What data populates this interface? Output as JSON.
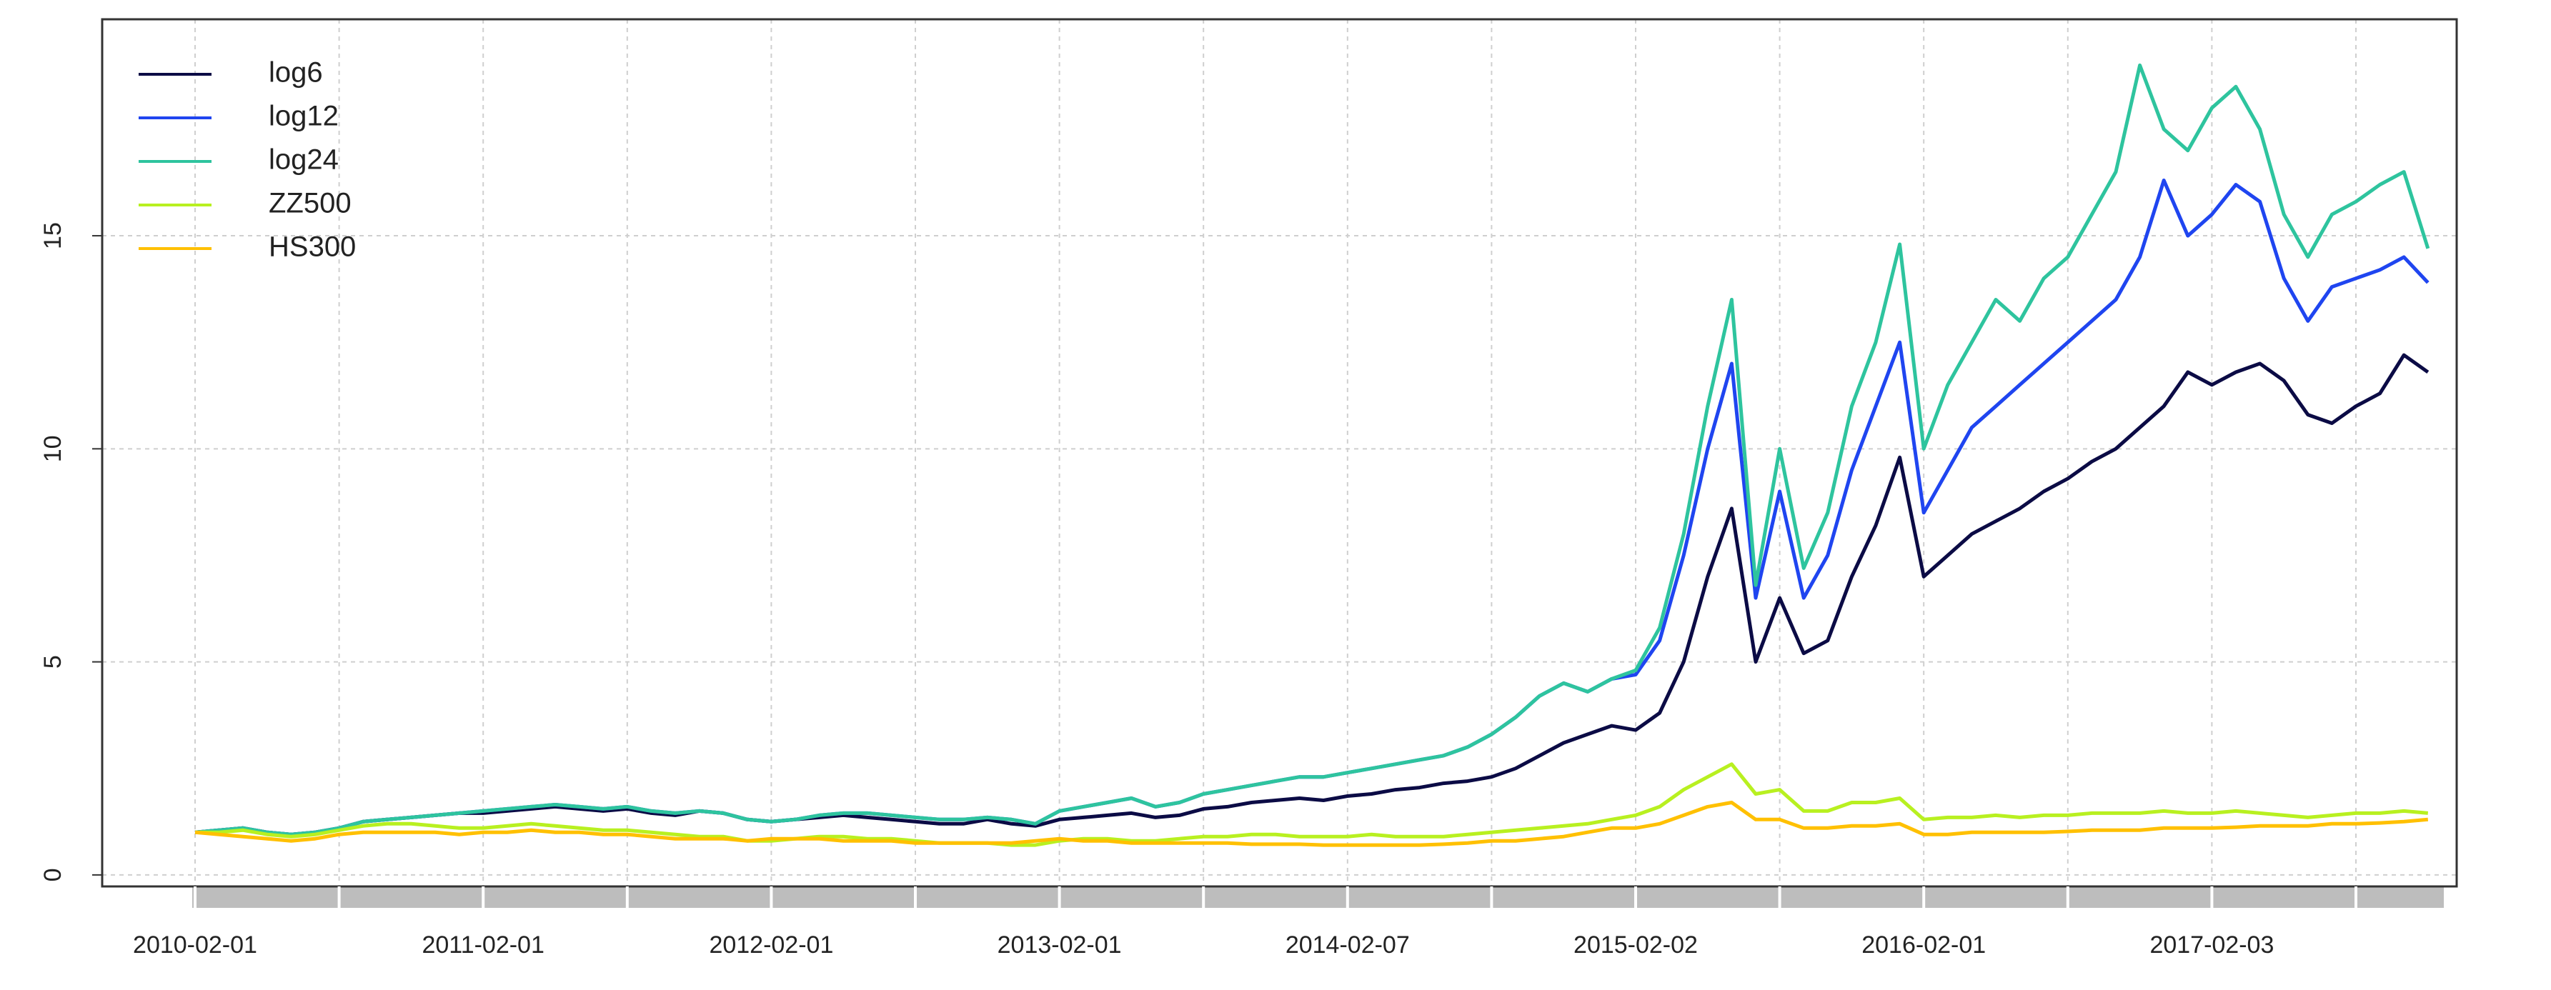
{
  "chart_data": {
    "type": "line",
    "categories": [
      "2010-02-01",
      null,
      null,
      null,
      null,
      null,
      null,
      null,
      null,
      null,
      null,
      null,
      "2011-02-01",
      null,
      null,
      null,
      null,
      null,
      null,
      null,
      null,
      null,
      null,
      null,
      "2012-02-01",
      null,
      null,
      null,
      null,
      null,
      null,
      null,
      null,
      null,
      null,
      null,
      "2013-02-01",
      null,
      null,
      null,
      null,
      null,
      null,
      null,
      null,
      null,
      null,
      null,
      "2014-02-07",
      null,
      null,
      null,
      null,
      null,
      null,
      null,
      null,
      null,
      null,
      null,
      "2015-02-02",
      null,
      null,
      null,
      null,
      null,
      null,
      null,
      null,
      null,
      null,
      null,
      "2016-02-01",
      null,
      null,
      null,
      null,
      null,
      null,
      null,
      null,
      null,
      null,
      null,
      "2017-02-03",
      null,
      null,
      null,
      null,
      null,
      null,
      null,
      null,
      null
    ],
    "series": [
      {
        "name": "log6",
        "color": "#0b0b45",
        "values": [
          1.0,
          1.05,
          1.1,
          1.0,
          0.95,
          1.0,
          1.1,
          1.25,
          1.3,
          1.35,
          1.4,
          1.45,
          1.45,
          1.5,
          1.55,
          1.6,
          1.55,
          1.5,
          1.55,
          1.45,
          1.4,
          1.5,
          1.45,
          1.3,
          1.25,
          1.3,
          1.35,
          1.4,
          1.35,
          1.3,
          1.25,
          1.2,
          1.2,
          1.3,
          1.2,
          1.15,
          1.3,
          1.35,
          1.4,
          1.45,
          1.35,
          1.4,
          1.55,
          1.6,
          1.7,
          1.75,
          1.8,
          1.75,
          1.85,
          1.9,
          2.0,
          2.05,
          2.15,
          2.2,
          2.3,
          2.5,
          2.8,
          3.1,
          3.3,
          3.5,
          3.4,
          3.8,
          5.0,
          7.0,
          8.6,
          5.0,
          6.5,
          5.2,
          5.5,
          7.0,
          8.2,
          9.8,
          7.0,
          7.5,
          8.0,
          8.3,
          8.6,
          9.0,
          9.3,
          9.7,
          10.0,
          10.5,
          11.0,
          11.8,
          11.5,
          11.8,
          12.0,
          11.6,
          10.8,
          10.6,
          11.0,
          11.3,
          12.2,
          11.8
        ]
      },
      {
        "name": "log12",
        "color": "#1f45f0",
        "values": [
          1.0,
          1.05,
          1.1,
          1.0,
          0.95,
          1.0,
          1.1,
          1.25,
          1.3,
          1.35,
          1.4,
          1.45,
          1.5,
          1.55,
          1.6,
          1.65,
          1.6,
          1.55,
          1.6,
          1.5,
          1.45,
          1.5,
          1.45,
          1.3,
          1.25,
          1.3,
          1.4,
          1.45,
          1.45,
          1.4,
          1.35,
          1.3,
          1.3,
          1.35,
          1.3,
          1.2,
          1.5,
          1.6,
          1.7,
          1.8,
          1.6,
          1.7,
          1.9,
          2.0,
          2.1,
          2.2,
          2.3,
          2.3,
          2.4,
          2.5,
          2.6,
          2.7,
          2.8,
          3.0,
          3.3,
          3.7,
          4.2,
          4.5,
          4.3,
          4.6,
          4.7,
          5.5,
          7.5,
          10.0,
          12.0,
          6.5,
          9.0,
          6.5,
          7.5,
          9.5,
          11.0,
          12.5,
          8.5,
          9.5,
          10.5,
          11.0,
          11.5,
          12.0,
          12.5,
          13.0,
          13.5,
          14.5,
          16.3,
          15.0,
          15.5,
          16.2,
          15.8,
          14.0,
          13.0,
          13.8,
          14.0,
          14.2,
          14.5,
          13.9
        ]
      },
      {
        "name": "log24",
        "color": "#2ec49e",
        "values": [
          1.0,
          1.05,
          1.1,
          1.0,
          0.95,
          1.0,
          1.1,
          1.25,
          1.3,
          1.35,
          1.4,
          1.45,
          1.5,
          1.55,
          1.6,
          1.65,
          1.6,
          1.55,
          1.6,
          1.5,
          1.45,
          1.5,
          1.45,
          1.3,
          1.25,
          1.3,
          1.4,
          1.45,
          1.45,
          1.4,
          1.35,
          1.3,
          1.3,
          1.35,
          1.3,
          1.2,
          1.5,
          1.6,
          1.7,
          1.8,
          1.6,
          1.7,
          1.9,
          2.0,
          2.1,
          2.2,
          2.3,
          2.3,
          2.4,
          2.5,
          2.6,
          2.7,
          2.8,
          3.0,
          3.3,
          3.7,
          4.2,
          4.5,
          4.3,
          4.6,
          4.8,
          5.8,
          8.0,
          11.0,
          13.5,
          6.8,
          10.0,
          7.2,
          8.5,
          11.0,
          12.5,
          14.8,
          10.0,
          11.5,
          12.5,
          13.5,
          13.0,
          14.0,
          14.5,
          15.5,
          16.5,
          19.0,
          17.5,
          17.0,
          18.0,
          18.5,
          17.5,
          15.5,
          14.5,
          15.5,
          15.8,
          16.2,
          16.5,
          14.7
        ]
      },
      {
        "name": "ZZ500",
        "color": "#b8f020",
        "values": [
          1.0,
          1.0,
          1.05,
          0.95,
          0.9,
          0.95,
          1.05,
          1.15,
          1.2,
          1.2,
          1.15,
          1.1,
          1.1,
          1.15,
          1.2,
          1.15,
          1.1,
          1.05,
          1.05,
          1.0,
          0.95,
          0.9,
          0.9,
          0.8,
          0.8,
          0.85,
          0.9,
          0.9,
          0.85,
          0.85,
          0.8,
          0.75,
          0.75,
          0.75,
          0.7,
          0.7,
          0.8,
          0.85,
          0.85,
          0.8,
          0.8,
          0.85,
          0.9,
          0.9,
          0.95,
          0.95,
          0.9,
          0.9,
          0.9,
          0.95,
          0.9,
          0.9,
          0.9,
          0.95,
          1.0,
          1.05,
          1.1,
          1.15,
          1.2,
          1.3,
          1.4,
          1.6,
          2.0,
          2.3,
          2.6,
          1.9,
          2.0,
          1.5,
          1.5,
          1.7,
          1.7,
          1.8,
          1.3,
          1.35,
          1.35,
          1.4,
          1.35,
          1.4,
          1.4,
          1.45,
          1.45,
          1.45,
          1.5,
          1.45,
          1.45,
          1.5,
          1.45,
          1.4,
          1.35,
          1.4,
          1.45,
          1.45,
          1.5,
          1.45
        ]
      },
      {
        "name": "HS300",
        "color": "#ffc000",
        "values": [
          1.0,
          0.95,
          0.9,
          0.85,
          0.8,
          0.85,
          0.95,
          1.0,
          1.0,
          1.0,
          1.0,
          0.95,
          1.0,
          1.0,
          1.05,
          1.0,
          1.0,
          0.95,
          0.95,
          0.9,
          0.85,
          0.85,
          0.85,
          0.8,
          0.85,
          0.85,
          0.85,
          0.8,
          0.8,
          0.8,
          0.75,
          0.75,
          0.75,
          0.75,
          0.75,
          0.8,
          0.85,
          0.8,
          0.8,
          0.75,
          0.75,
          0.75,
          0.75,
          0.75,
          0.72,
          0.72,
          0.72,
          0.7,
          0.7,
          0.7,
          0.7,
          0.7,
          0.72,
          0.75,
          0.8,
          0.8,
          0.85,
          0.9,
          1.0,
          1.1,
          1.1,
          1.2,
          1.4,
          1.6,
          1.7,
          1.3,
          1.3,
          1.1,
          1.1,
          1.15,
          1.15,
          1.2,
          0.95,
          0.95,
          1.0,
          1.0,
          1.0,
          1.0,
          1.02,
          1.05,
          1.05,
          1.05,
          1.1,
          1.1,
          1.1,
          1.12,
          1.15,
          1.15,
          1.15,
          1.2,
          1.2,
          1.22,
          1.25,
          1.3
        ]
      }
    ],
    "ylim": [
      -0.27,
      20.08
    ],
    "yticks": [
      0,
      5,
      10,
      15
    ],
    "grid": true,
    "legend": "top-left"
  }
}
